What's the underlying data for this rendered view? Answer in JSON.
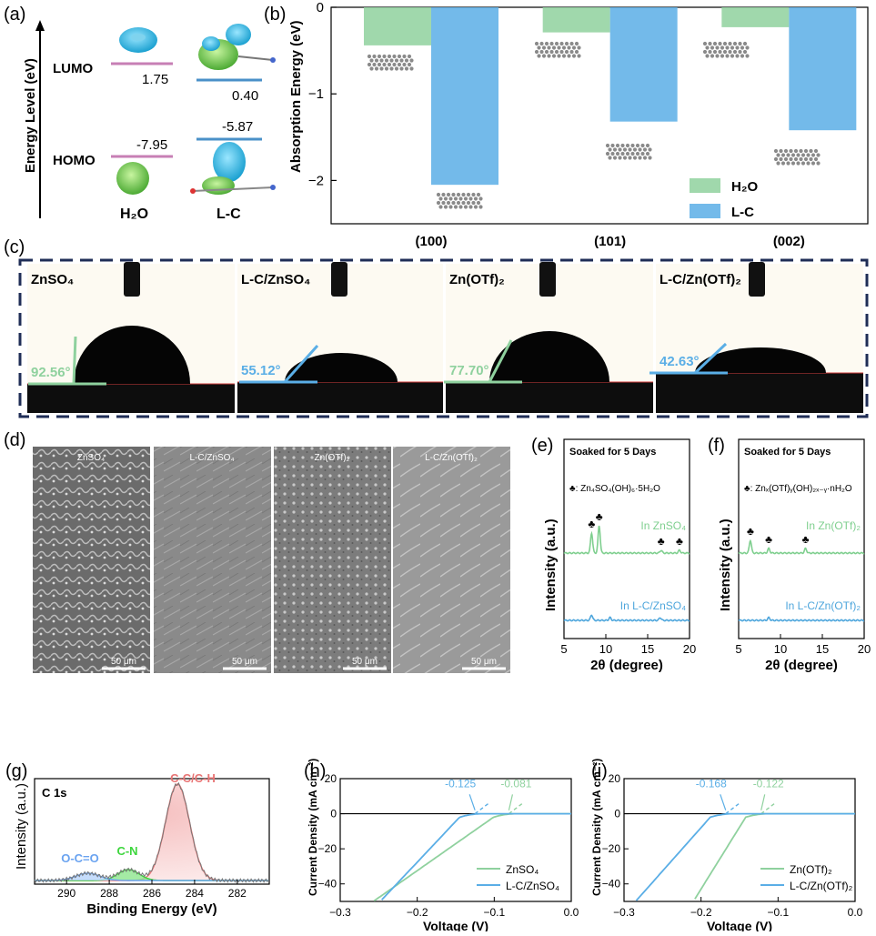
{
  "colors": {
    "h2o": "#8fd19e",
    "lc": "#5aaee6",
    "homo_lumo_line_h2o": "#c77fb5",
    "homo_lumo_line_lc": "#4a90c8",
    "frame_dash": "#1f2d56",
    "xps_total": "#e87575",
    "xps_cn": "#3ed63e",
    "xps_oco": "#6aa3f0",
    "xrd_green": "#7fcf8f",
    "xrd_blue": "#4ea6dc"
  },
  "panels": {
    "a": {
      "letter": "(a)",
      "ylabel": "Energy Level (eV)",
      "lumo_label": "LUMO",
      "homo_label": "HOMO",
      "h2o_lumo": "1.75",
      "h2o_homo": "-7.95",
      "lc_lumo": "0.40",
      "lc_homo": "-5.87",
      "h2o_label": "H₂O",
      "lc_label": "L-C"
    },
    "b": {
      "letter": "(b)"
    },
    "c": {
      "letter": "(c)",
      "samples": [
        {
          "name": "ZnSO₄",
          "angle": "92.56°"
        },
        {
          "name": "L-C/ZnSO₄",
          "angle": "55.12°"
        },
        {
          "name": "Zn(OTf)₂",
          "angle": "77.70°"
        },
        {
          "name": "L-C/Zn(OTf)₂",
          "angle": "42.63°"
        }
      ]
    },
    "d": {
      "letter": "(d)",
      "labels": [
        "ZnSO₄",
        "L-C/ZnSO₄",
        "Zn(OTf)₂",
        "L-C/Zn(OTf)₂"
      ],
      "scale": "50 μm"
    },
    "e": {
      "letter": "(e)"
    },
    "f": {
      "letter": "(f)"
    },
    "g": {
      "letter": "(g)"
    },
    "h": {
      "letter": "(h)"
    },
    "i": {
      "letter": "(i)"
    }
  },
  "chart_data": [
    {
      "id": "b",
      "type": "bar",
      "categories": [
        "(100)",
        "(101)",
        "(002)"
      ],
      "series": [
        {
          "name": "H₂O",
          "values": [
            -0.44,
            -0.29,
            -0.23
          ]
        },
        {
          "name": "L-C",
          "values": [
            -2.05,
            -1.32,
            -1.42
          ]
        }
      ],
      "ylabel": "Absorption Energy (eV)",
      "ylim": [
        -2.5,
        0
      ],
      "yticks": [
        0,
        -1,
        -2
      ],
      "legend": "bottom-right"
    },
    {
      "id": "e",
      "type": "line",
      "title": "Soaked for 5 Days",
      "annotation": "♣: Zn₄SO₄(OH)₆·5H₂O",
      "xlabel": "2θ (degree)",
      "ylabel": "Intensity (a.u.)",
      "xlim": [
        5,
        20
      ],
      "xticks": [
        5,
        10,
        15,
        20
      ],
      "series": [
        {
          "name": "In ZnSO₄",
          "peaks": [
            8.3,
            9.2,
            16.6,
            18.8
          ]
        },
        {
          "name": "In L-C/ZnSO₄",
          "peaks": [
            8.3,
            10.5,
            16.5
          ]
        }
      ]
    },
    {
      "id": "f",
      "type": "line",
      "title": "Soaked for 5 Days",
      "annotation": "♣: Znₓ(OTf)ᵧ(OH)₂ₓ₋ᵧ·nH₂O",
      "xlabel": "2θ (degree)",
      "ylabel": "Intensity (a.u.)",
      "xlim": [
        5,
        20
      ],
      "xticks": [
        5,
        10,
        15,
        20
      ],
      "series": [
        {
          "name": "In Zn(OTf)₂",
          "peaks": [
            6.4,
            8.6,
            13.0
          ]
        },
        {
          "name": "In L-C/Zn(OTf)₂",
          "peaks": [
            8.6
          ]
        }
      ]
    },
    {
      "id": "g",
      "type": "area",
      "title": "C 1s",
      "xlabel": "Binding Energy (eV)",
      "ylabel": "Intensity (a.u.)",
      "xlim": [
        291.5,
        280.5
      ],
      "xticks": [
        290,
        288,
        286,
        284,
        282
      ],
      "series": [
        {
          "name": "C-C/C-H",
          "center": 284.8
        },
        {
          "name": "C-N",
          "center": 287.1
        },
        {
          "name": "O-C=O",
          "center": 289.0
        }
      ]
    },
    {
      "id": "h",
      "type": "line",
      "xlabel": "Voltage (V)",
      "ylabel": "Current Density (mA cm⁻²)",
      "xlim": [
        -0.3,
        0.0
      ],
      "ylim": [
        -50,
        20
      ],
      "xticks": [
        -0.3,
        -0.2,
        -0.1,
        0.0
      ],
      "yticks": [
        20,
        0,
        -20,
        -40
      ],
      "annotations": [
        "-0.125",
        "-0.081"
      ],
      "series": [
        {
          "name": "ZnSO₄",
          "onset": -0.081,
          "x_at_min": -0.257
        },
        {
          "name": "L-C/ZnSO₄",
          "onset": -0.125,
          "x_at_min": -0.248
        }
      ]
    },
    {
      "id": "i",
      "type": "line",
      "xlabel": "Voltage (V)",
      "ylabel": "Current Density (mA cm⁻²)",
      "xlim": [
        -0.3,
        0.0
      ],
      "ylim": [
        -50,
        20
      ],
      "xticks": [
        -0.3,
        -0.2,
        -0.1,
        0.0
      ],
      "yticks": [
        20,
        0,
        -20,
        -40
      ],
      "annotations": [
        "-0.168",
        "-0.122"
      ],
      "series": [
        {
          "name": "Zn(OTf)₂",
          "onset": -0.122,
          "x_at_min": -0.21
        },
        {
          "name": "L-C/Zn(OTf)₂",
          "onset": -0.168,
          "x_at_min": -0.285
        }
      ]
    }
  ]
}
